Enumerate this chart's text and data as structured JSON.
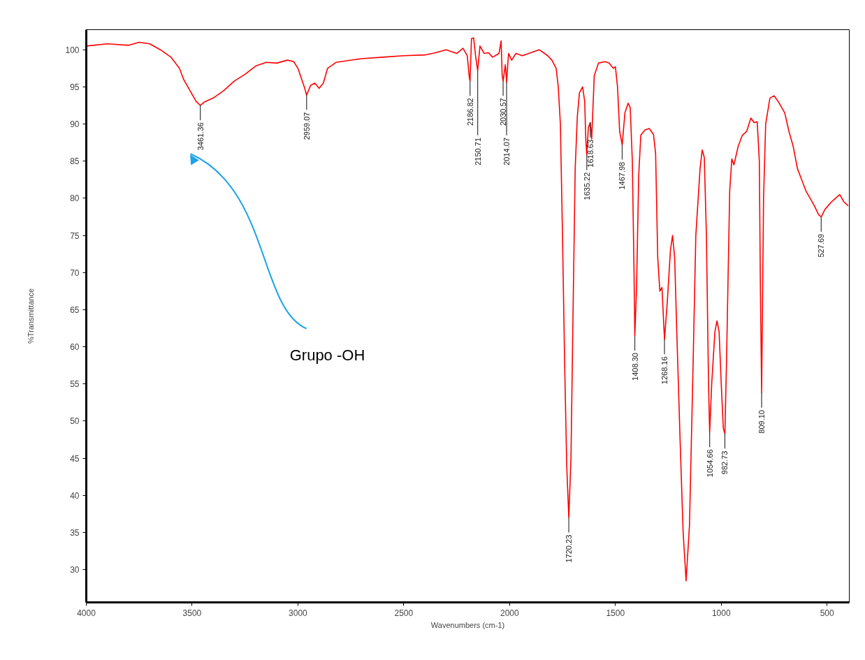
{
  "chart_data": {
    "type": "line",
    "xlabel": "Wavenumbers (cm-1)",
    "ylabel": "%Transmittance",
    "xlim": [
      4000,
      395
    ],
    "ylim": [
      25.6,
      102.7
    ],
    "xticks": [
      4000,
      3500,
      3000,
      2500,
      2000,
      1500,
      1000,
      500
    ],
    "yticks": [
      30,
      35,
      40,
      45,
      50,
      55,
      60,
      65,
      70,
      75,
      80,
      85,
      90,
      95,
      100
    ],
    "line_style": "solid",
    "marker": "none",
    "x": [
      4000,
      3900,
      3800,
      3750,
      3700,
      3650,
      3600,
      3560,
      3540,
      3520,
      3500,
      3480,
      3461.36,
      3440,
      3400,
      3350,
      3300,
      3250,
      3200,
      3150,
      3100,
      3050,
      3020,
      3000,
      2970,
      2959.07,
      2940,
      2920,
      2900,
      2880,
      2860,
      2820,
      2700,
      2600,
      2500,
      2400,
      2350,
      2300,
      2250,
      2220,
      2200,
      2190,
      2186.82,
      2180,
      2170,
      2160,
      2150.71,
      2140,
      2120,
      2100,
      2080,
      2050,
      2040,
      2035,
      2030.57,
      2020,
      2014.07,
      2005,
      1990,
      1970,
      1940,
      1900,
      1860,
      1820,
      1800,
      1780,
      1770,
      1760,
      1750,
      1740,
      1730,
      1720.23,
      1710,
      1700,
      1690,
      1680,
      1670,
      1655,
      1645,
      1640,
      1635.22,
      1628,
      1618.63,
      1612,
      1600,
      1580,
      1550,
      1530,
      1510,
      1500,
      1490,
      1480,
      1467.98,
      1455,
      1440,
      1430,
      1420,
      1412,
      1408.3,
      1400,
      1390,
      1380,
      1360,
      1340,
      1320,
      1310,
      1300,
      1290,
      1280,
      1268.16,
      1255,
      1240,
      1230,
      1220,
      1210,
      1195,
      1180,
      1166,
      1150,
      1135,
      1120,
      1100,
      1090,
      1080,
      1070,
      1060,
      1054.66,
      1045,
      1030,
      1020,
      1010,
      1000,
      990,
      982.73,
      975,
      960,
      950,
      940,
      920,
      900,
      880,
      860,
      845,
      830,
      820,
      815,
      809.1,
      800,
      790,
      770,
      750,
      730,
      700,
      680,
      660,
      640,
      620,
      600,
      580,
      560,
      540,
      527.69,
      510,
      480,
      460,
      440,
      420,
      400
    ],
    "series": [
      {
        "color": "#ff0000",
        "values": [
          100.5,
          100.8,
          100.6,
          101.0,
          100.8,
          100.0,
          99.0,
          97.5,
          96,
          95,
          94,
          93,
          92.5,
          93,
          93.5,
          94.5,
          95.8,
          96.7,
          97.8,
          98.3,
          98.2,
          98.6,
          98.4,
          97.5,
          95,
          93.9,
          95.2,
          95.5,
          94.8,
          95.5,
          97.5,
          98.3,
          98.8,
          99.0,
          99.2,
          99.3,
          99.6,
          100,
          99.5,
          100.2,
          99.2,
          96.2,
          95.8,
          101.5,
          101.6,
          99,
          97.2,
          100.5,
          99.5,
          99.6,
          99.0,
          99.5,
          101.2,
          96.5,
          95.8,
          98,
          95.6,
          99.5,
          98.6,
          99.5,
          99.2,
          99.6,
          100,
          99.2,
          98.6,
          97.5,
          95,
          90,
          75,
          58,
          44,
          37,
          45,
          65,
          84,
          91,
          94.2,
          95.0,
          93,
          88,
          85.8,
          89.5,
          90.2,
          88,
          96.5,
          98.2,
          98.4,
          98.2,
          97.5,
          97.7,
          95,
          89,
          87.2,
          91.5,
          92.8,
          92.2,
          85,
          70,
          61.5,
          68,
          83,
          88.5,
          89.2,
          89.4,
          88.6,
          86,
          72,
          67.5,
          68,
          61,
          66,
          73,
          75,
          72,
          62,
          48,
          35,
          28.5,
          36,
          55,
          75,
          84,
          86.5,
          85.5,
          75,
          55,
          48.5,
          55,
          62,
          63.5,
          62,
          55,
          49,
          48.3,
          58,
          81,
          85.3,
          84.5,
          87,
          88.5,
          89,
          90.8,
          90.2,
          90.3,
          85,
          68,
          53.8,
          80,
          90,
          93.5,
          93.8,
          93,
          91.5,
          89,
          87,
          84,
          82.5,
          81,
          80,
          79,
          77.8,
          77.5,
          78.5,
          79.5,
          80,
          80.5,
          79.5,
          79
        ]
      }
    ],
    "annotations": [
      {
        "text": "3461.36",
        "x": 3461.36,
        "y": 92.5
      },
      {
        "text": "2959.07",
        "x": 2959.07,
        "y": 93.9
      },
      {
        "text": "2186.82",
        "x": 2186.82,
        "y": 95.8
      },
      {
        "text": "2150.71",
        "x": 2150.71,
        "y": 97.2
      },
      {
        "text": "2030.57",
        "x": 2030.57,
        "y": 95.8
      },
      {
        "text": "2014.07",
        "x": 2014.07,
        "y": 95.6
      },
      {
        "text": "1720.23",
        "x": 1720.23,
        "y": 37
      },
      {
        "text": "1635.22",
        "x": 1635.22,
        "y": 85.8
      },
      {
        "text": "1618.63",
        "x": 1618.63,
        "y": 90.2
      },
      {
        "text": "1467.98",
        "x": 1467.98,
        "y": 87.2
      },
      {
        "text": "1408.30",
        "x": 1408.3,
        "y": 61.5
      },
      {
        "text": "1268.16",
        "x": 1268.16,
        "y": 61
      },
      {
        "text": "1054.66",
        "x": 1054.66,
        "y": 48.5
      },
      {
        "text": "982.73",
        "x": 982.73,
        "y": 48.3
      },
      {
        "text": "809.10",
        "x": 809.1,
        "y": 53.8
      },
      {
        "text": "527.69",
        "x": 527.69,
        "y": 77.5
      },
      "Grupo -OH"
    ]
  }
}
